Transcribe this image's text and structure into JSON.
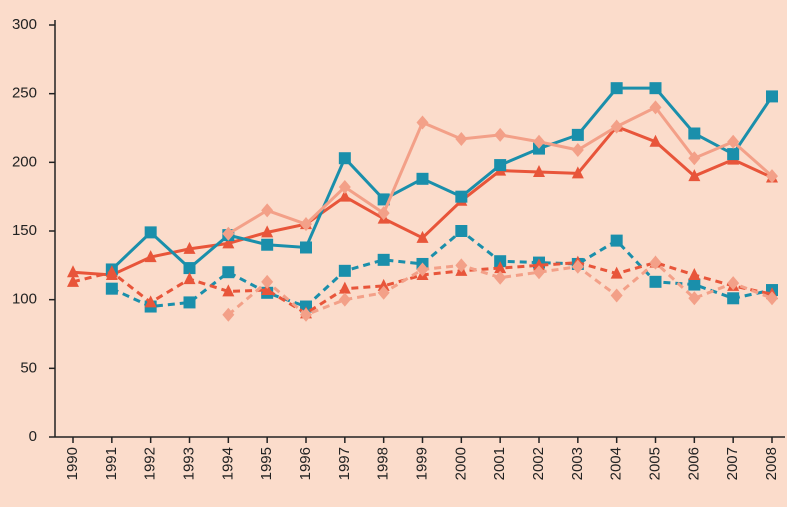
{
  "chart_data": {
    "type": "line",
    "categories": [
      "1990",
      "1991",
      "1992",
      "1993",
      "1994",
      "1995",
      "1996",
      "1997",
      "1998",
      "1999",
      "2000",
      "2001",
      "2002",
      "2003",
      "2004",
      "2005",
      "2006",
      "2007",
      "2008"
    ],
    "series": [
      {
        "color": "#e8553a",
        "dash": false,
        "marker": "triangle",
        "values": [
          120,
          118,
          131,
          137,
          141,
          149,
          155,
          175,
          159,
          145,
          172,
          194,
          193,
          192,
          226,
          215,
          190,
          202,
          189
        ]
      },
      {
        "color": "#1a8fab",
        "dash": false,
        "marker": "square",
        "values": [
          null,
          122,
          149,
          123,
          147,
          140,
          138,
          203,
          173,
          188,
          175,
          198,
          210,
          220,
          254,
          254,
          221,
          206,
          248
        ]
      },
      {
        "color": "#f3a088",
        "dash": false,
        "marker": "diamond",
        "values": [
          null,
          null,
          null,
          null,
          148,
          165,
          155,
          182,
          163,
          229,
          217,
          220,
          215,
          209,
          226,
          240,
          203,
          215,
          190
        ]
      },
      {
        "color": "#1a8fab",
        "dash": true,
        "marker": "square",
        "values": [
          null,
          108,
          95,
          98,
          120,
          105,
          95,
          121,
          129,
          126,
          150,
          128,
          127,
          126,
          143,
          113,
          111,
          101,
          107
        ]
      },
      {
        "color": "#e8553a",
        "dash": true,
        "marker": "triangle",
        "values": [
          113,
          120,
          98,
          115,
          106,
          107,
          90,
          108,
          110,
          118,
          121,
          123,
          125,
          127,
          119,
          127,
          118,
          110,
          104
        ]
      },
      {
        "color": "#f3a088",
        "dash": true,
        "marker": "diamond",
        "values": [
          null,
          null,
          null,
          null,
          89,
          113,
          89,
          100,
          105,
          122,
          125,
          116,
          120,
          124,
          103,
          127,
          101,
          112,
          101
        ]
      }
    ],
    "ylim": [
      0,
      300
    ],
    "yticks": [
      0,
      50,
      100,
      150,
      200,
      250,
      300
    ],
    "grid": false
  }
}
